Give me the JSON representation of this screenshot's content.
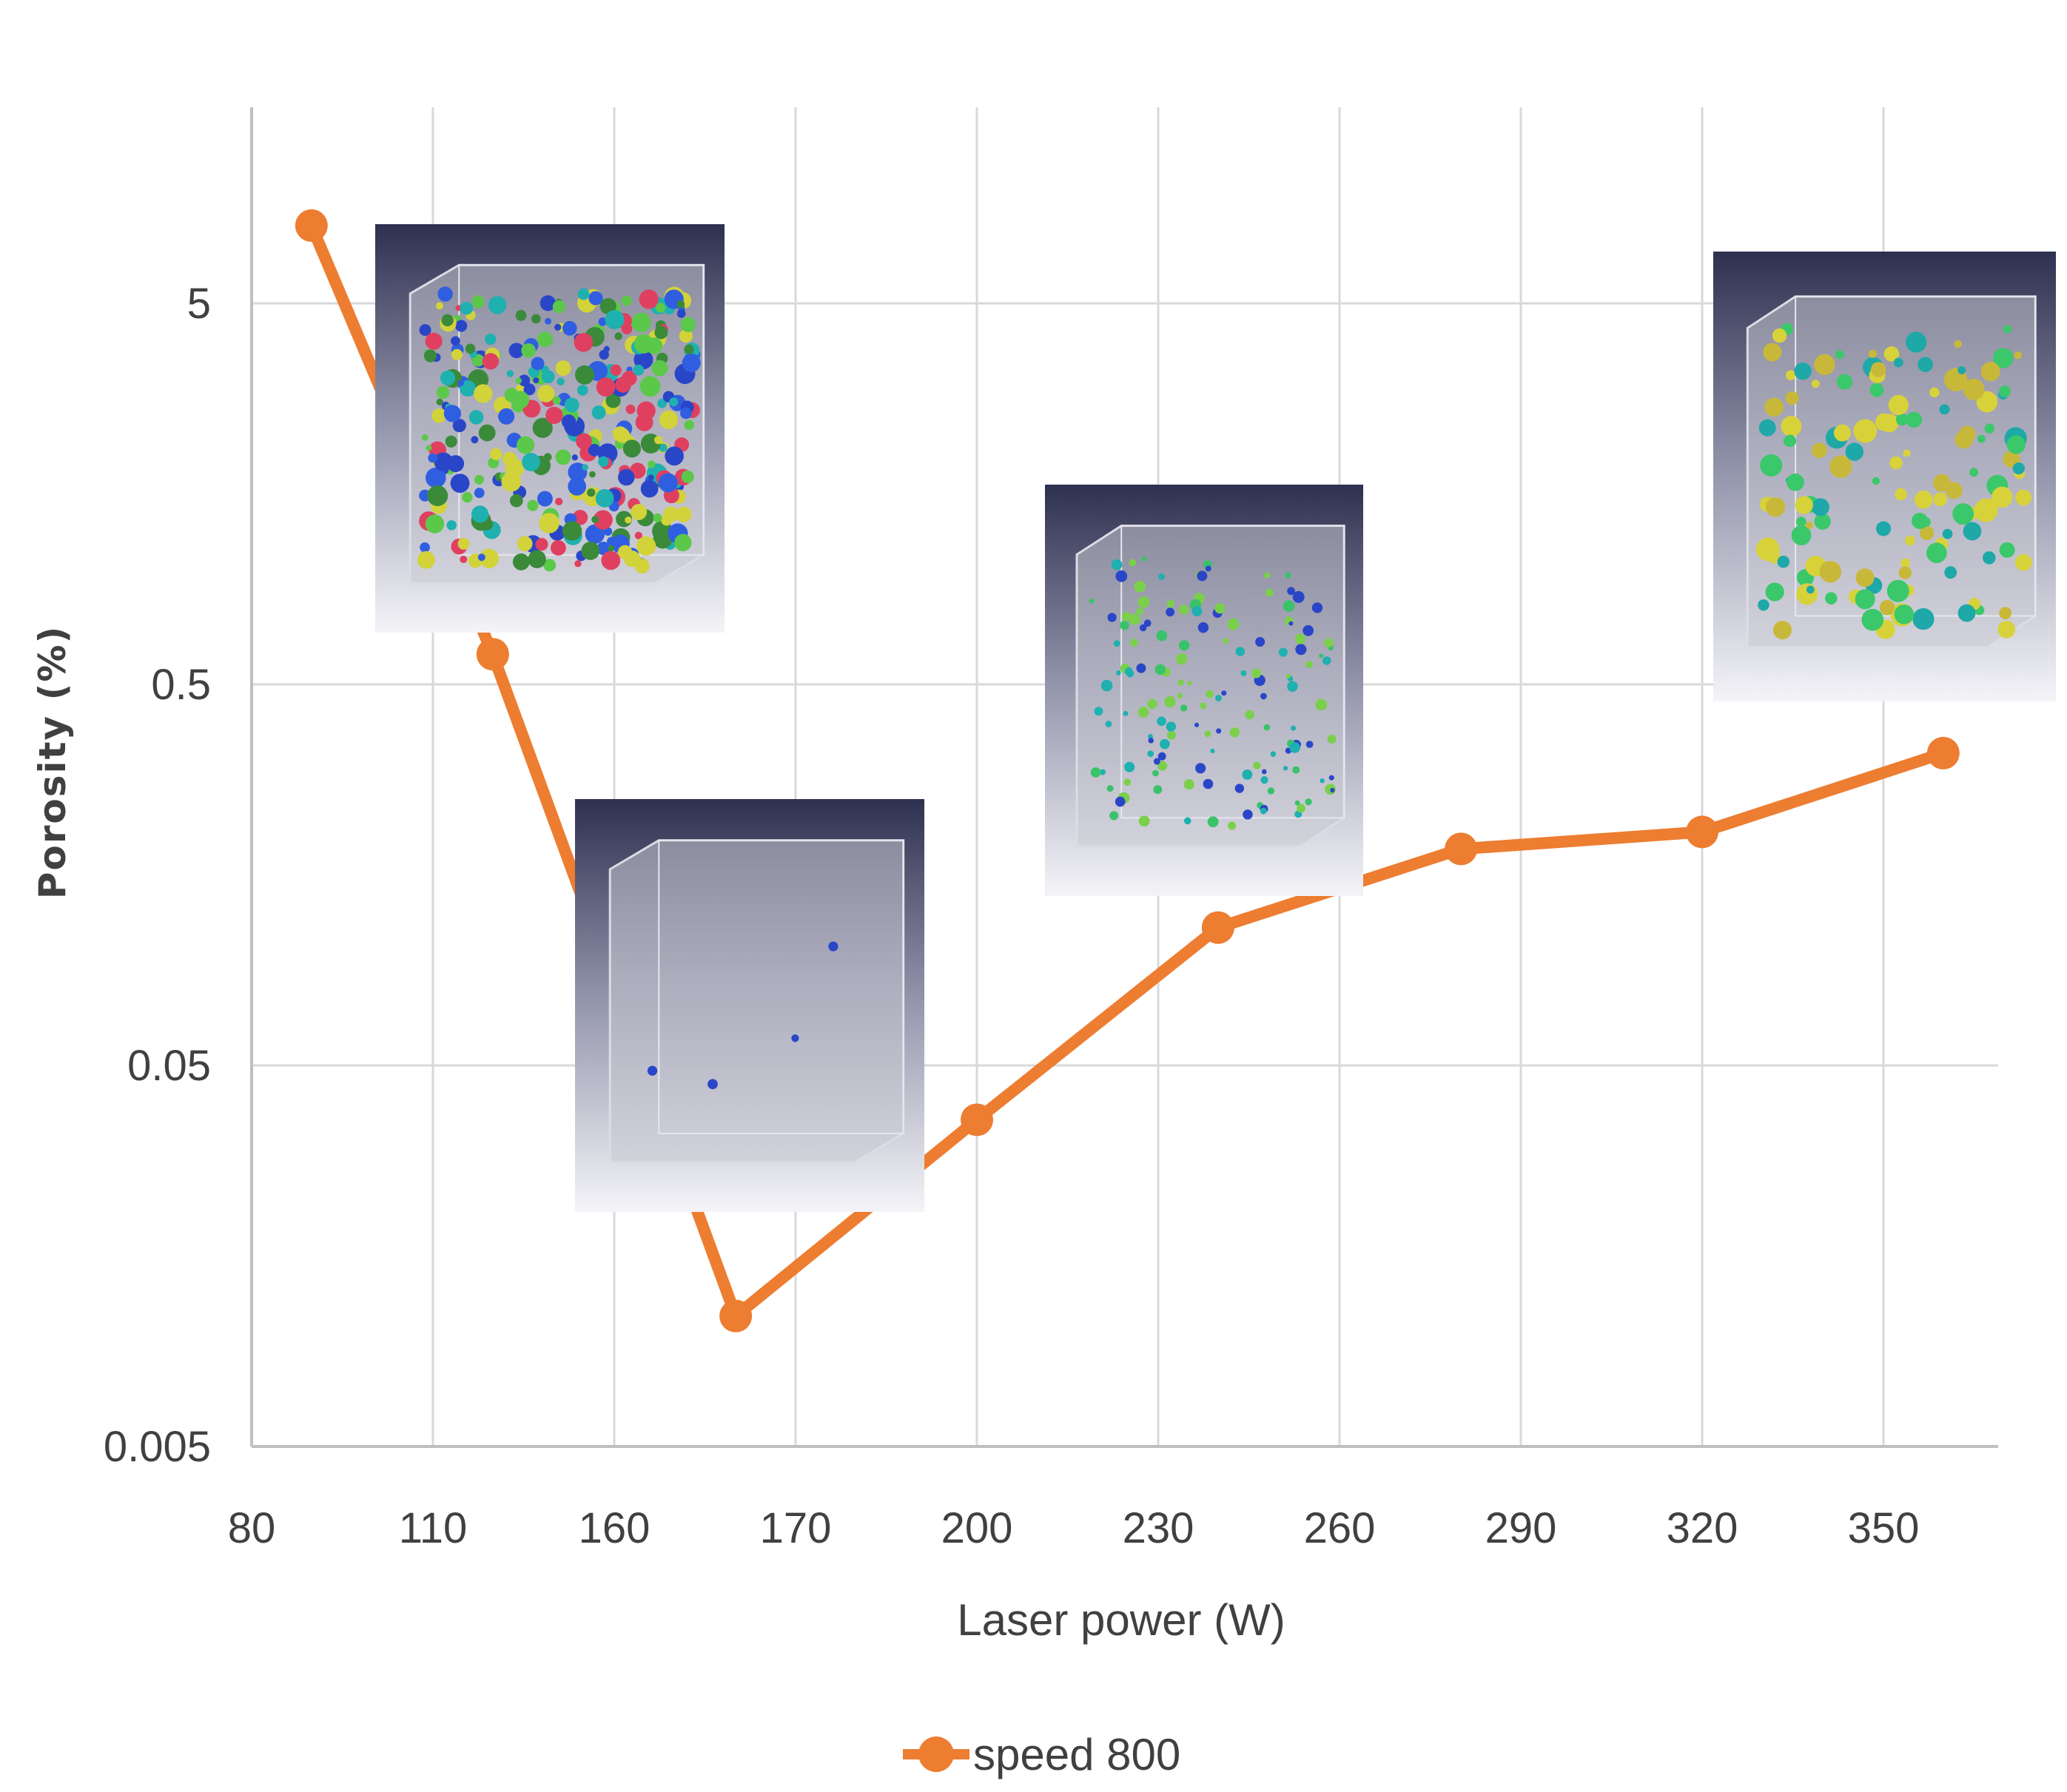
{
  "chart_data": {
    "type": "line",
    "title": "",
    "xlabel": "Laser power (W)",
    "ylabel": "Porosity (%)",
    "x_tick_labels": [
      "80",
      "110",
      "160",
      "170",
      "200",
      "230",
      "260",
      "290",
      "320",
      "350"
    ],
    "y_tick_labels": [
      "0.005",
      "0.05",
      "0.5",
      "5"
    ],
    "y_scale": "log",
    "ylim": [
      0.005,
      50
    ],
    "grid": true,
    "legend_position": "bottom-center",
    "series": [
      {
        "name": "speed 800",
        "color": "#ed7d31",
        "points": [
          {
            "x": "80",
            "offset": 0.33,
            "y": 8.0
          },
          {
            "x": "110",
            "offset": 0.33,
            "y": 0.6
          },
          {
            "x": "160",
            "offset": 0.67,
            "y": 0.011
          },
          {
            "x": "200",
            "offset": 0.0,
            "y": 0.036
          },
          {
            "x": "230",
            "offset": 0.33,
            "y": 0.115
          },
          {
            "x": "260",
            "offset": 0.67,
            "y": 0.185
          },
          {
            "x": "320",
            "offset": 0.0,
            "y": 0.205
          },
          {
            "x": "350",
            "offset": 0.33,
            "y": 0.33
          }
        ]
      }
    ]
  }
}
